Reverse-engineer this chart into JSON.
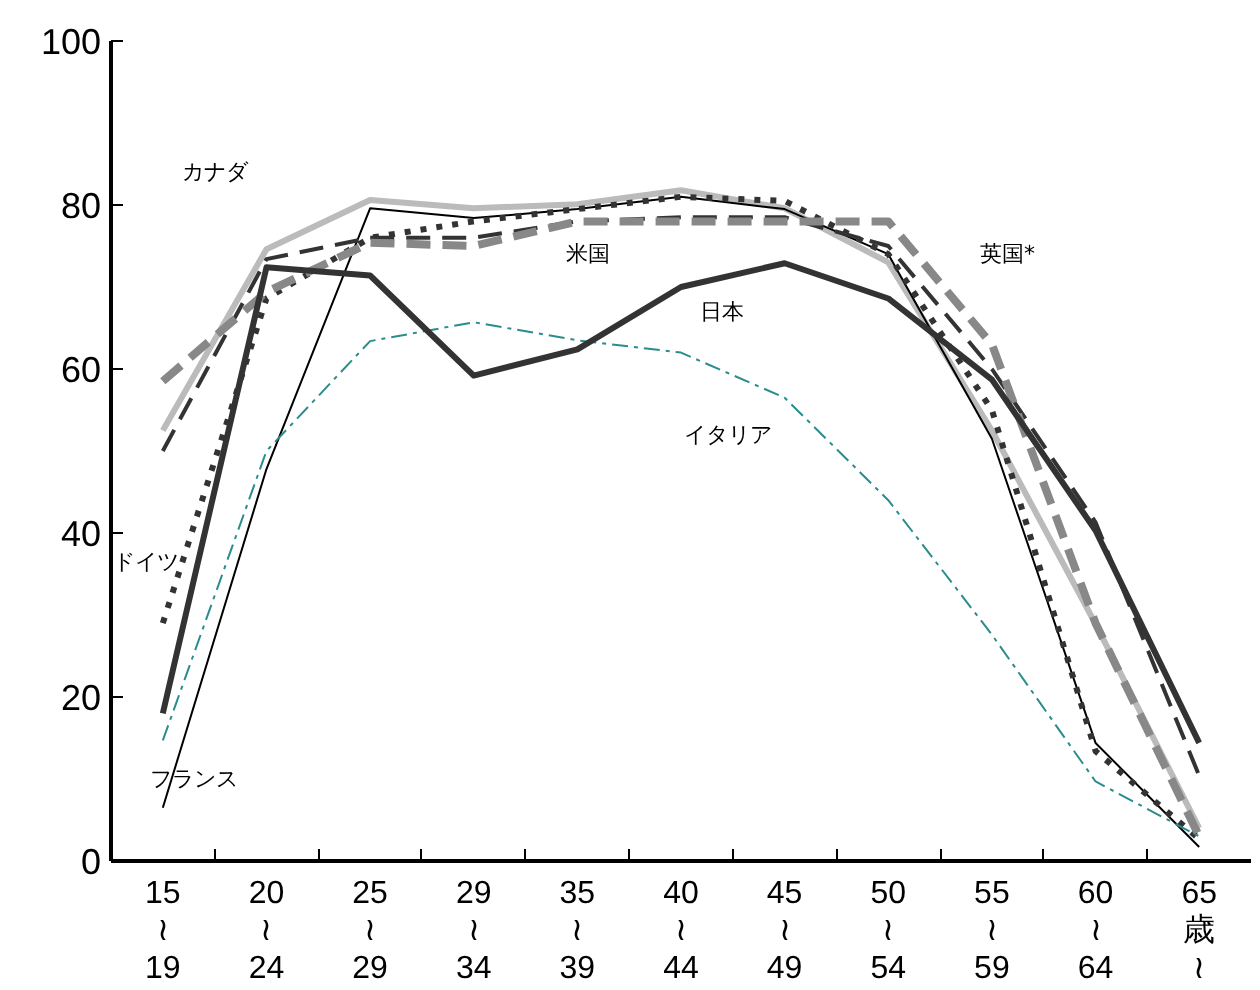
{
  "chart_data": {
    "type": "line",
    "categories": [
      "15\n≀\n19",
      "20\n≀\n24",
      "25\n≀\n29",
      "29\n≀\n34",
      "35\n≀\n39",
      "40\n≀\n44",
      "45\n≀\n49",
      "50\n≀\n54",
      "55\n≀\n59",
      "60\n≀\n64",
      "65\n歳\n≀"
    ],
    "ylim": [
      0,
      100
    ],
    "yticks": [
      0,
      20,
      40,
      60,
      80,
      100
    ],
    "grid": false,
    "marker": "none",
    "series": [
      {
        "color": "#bbbbbb",
        "line_style": "solid",
        "values": [
          52.5,
          74.6,
          80.6,
          79.6,
          80.1,
          81.8,
          79.6,
          73,
          52.5,
          28.9,
          4
        ]
      },
      {
        "color": "#000000",
        "line_style": "solid",
        "values": [
          6.5,
          47.8,
          79.6,
          78.4,
          79.5,
          81,
          79.5,
          74,
          51.5,
          14.4,
          1.7
        ]
      },
      {
        "color": "#333333",
        "line_style": "dotted",
        "values": [
          29,
          68.6,
          76,
          78,
          79.5,
          81,
          80.5,
          74,
          55,
          13.4,
          2.7
        ]
      },
      {
        "color": "#333333",
        "line_style": "dashed",
        "values": [
          50,
          73.4,
          76,
          76,
          78,
          78.5,
          78.5,
          75,
          60,
          41.3,
          10.4
        ]
      },
      {
        "color": "#888888",
        "line_style": "dashed",
        "values": [
          58.5,
          69.4,
          75.4,
          75,
          78,
          78,
          78,
          78,
          63,
          29,
          3
        ]
      },
      {
        "color": "#2a8c8c",
        "line_style": "dashdot",
        "values": [
          14.7,
          50,
          63.4,
          65.7,
          63.5,
          62,
          56.5,
          44,
          27.6,
          9.7,
          3
        ]
      },
      {
        "color": "#333333",
        "line_style": "solid",
        "values": [
          18,
          72.4,
          71.4,
          59.2,
          62.4,
          70,
          72.9,
          68.6,
          58.7,
          40.3,
          14.4
        ]
      }
    ],
    "annotations": [
      "カナダ",
      "ドイツ",
      "フランス",
      "米国",
      "日本",
      "イタリア",
      "英国*"
    ]
  }
}
